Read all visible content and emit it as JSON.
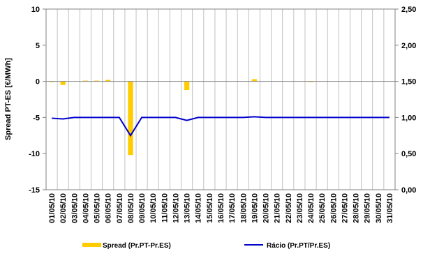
{
  "chart_data": {
    "type": "bar",
    "ylabel": "Spread PT-ES [€/MWh]",
    "left_axis": {
      "ylim": [
        -15,
        10
      ],
      "ticks": [
        10,
        5,
        0,
        -5,
        -10,
        -15
      ],
      "tick_labels": [
        "10",
        "5",
        "0",
        "-5",
        "-10",
        "-15"
      ]
    },
    "right_axis": {
      "ylim": [
        0,
        2.5
      ],
      "ticks": [
        2.5,
        2.0,
        1.5,
        1.0,
        0.5,
        0.0
      ],
      "tick_labels": [
        "2,50",
        "2,00",
        "1,50",
        "1,00",
        "0,50",
        "0,00"
      ]
    },
    "grid": "vertical",
    "legend_position": "bottom",
    "categories": [
      "01/05/10",
      "02/05/10",
      "03/05/10",
      "04/05/10",
      "05/05/10",
      "06/05/10",
      "07/05/10",
      "08/05/10",
      "09/05/10",
      "10/05/10",
      "11/05/10",
      "12/05/10",
      "13/05/10",
      "14/05/10",
      "15/05/10",
      "16/05/10",
      "17/05/10",
      "18/05/10",
      "19/05/10",
      "20/05/10",
      "21/05/10",
      "22/05/10",
      "23/05/10",
      "24/05/10",
      "25/05/10",
      "26/05/10",
      "27/05/10",
      "28/05/10",
      "29/05/10",
      "30/05/10",
      "31/05/10"
    ],
    "series": [
      {
        "name": "Spread (Pr.PT-Pr.ES)",
        "kind": "bar",
        "axis": "left",
        "color": "#FFCC00",
        "values": [
          -0.1,
          -0.5,
          0,
          0.1,
          0.1,
          0.2,
          0,
          -10.2,
          0,
          0,
          0,
          0,
          -1.2,
          0,
          0,
          0,
          0,
          0,
          0.3,
          0,
          0,
          0,
          0,
          -0.1,
          0,
          0,
          0,
          0,
          0,
          0,
          0
        ]
      },
      {
        "name": "Rácio (Pr.PT/Pr.ES)",
        "kind": "line",
        "axis": "right",
        "color": "#0000CC",
        "values": [
          0.99,
          0.98,
          1.0,
          1.0,
          1.0,
          1.0,
          1.0,
          0.75,
          1.0,
          1.0,
          1.0,
          1.0,
          0.96,
          1.0,
          1.0,
          1.0,
          1.0,
          1.0,
          1.01,
          1.0,
          1.0,
          1.0,
          1.0,
          1.0,
          1.0,
          1.0,
          1.0,
          1.0,
          1.0,
          1.0,
          1.0
        ]
      }
    ]
  }
}
